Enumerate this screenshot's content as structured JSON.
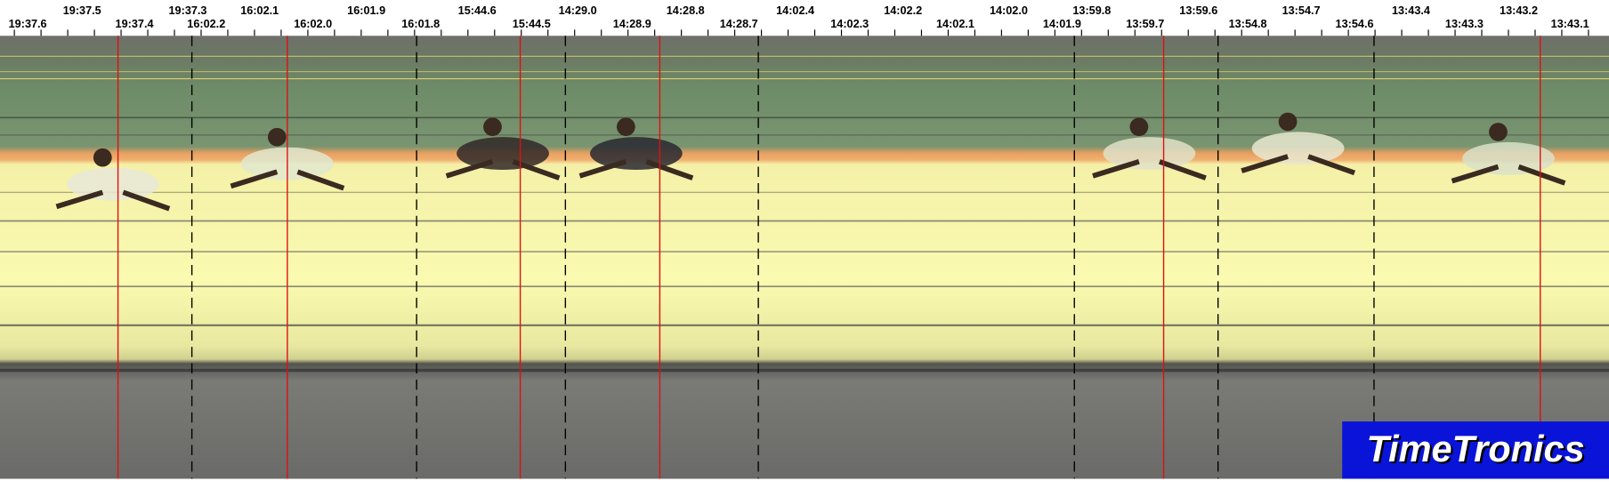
{
  "ruler": {
    "upper_labels": [
      "19:37.5",
      "19:37.3",
      "16:02.1",
      "16:01.9",
      "15:44.6",
      "14:29.0",
      "14:28.8",
      "14:02.4",
      "14:02.2",
      "14:02.0",
      "13:59.8",
      "13:59.6",
      "13:54.7",
      "13:43.4",
      "13:43.2"
    ],
    "lower_labels": [
      "19:37.6",
      "19:37.4",
      "16:02.2",
      "16:02.0",
      "16:01.8",
      "15:44.5",
      "14:28.9",
      "14:28.7",
      "14:02.3",
      "14:02.1",
      "14:01.9",
      "13:59.7",
      "13:54.8",
      "13:54.6",
      "13:43.3",
      "13:43.1"
    ]
  },
  "logo": {
    "text": "TimeTronics"
  }
}
